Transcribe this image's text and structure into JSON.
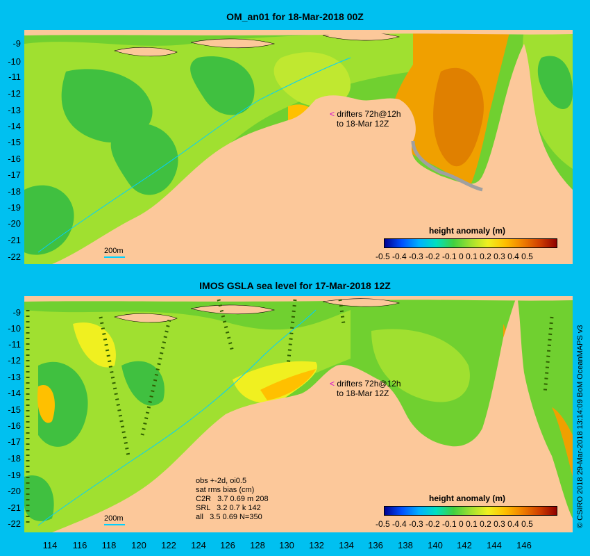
{
  "panel1": {
    "title": "OM_an01 for 18-Mar-2018 00Z",
    "y_labels": [
      "-9",
      "-10",
      "-11",
      "-12",
      "-13",
      "-14",
      "-15",
      "-16",
      "-17",
      "-18",
      "-19",
      "-20",
      "-21",
      "-22"
    ],
    "colorbar_title": "height anomaly (m)",
    "colorbar_ticks": "-0.5 -0.4 -0.3 -0.2 -0.1   0   0.1  0.2  0.3  0.4  0.5",
    "drifter_line1": "drifters 72h@12h",
    "drifter_line2": "to 18-Mar 12Z",
    "scale_label": "200m"
  },
  "panel2": {
    "title": "IMOS GSLA sea level  for 17-Mar-2018 12Z",
    "y_labels": [
      "-9",
      "-10",
      "-11",
      "-12",
      "-13",
      "-14",
      "-15",
      "-16",
      "-17",
      "-18",
      "-19",
      "-20",
      "-21",
      "-22"
    ],
    "colorbar_title": "height anomaly (m)",
    "colorbar_ticks": "-0.5 -0.4 -0.3 -0.2 -0.1   0   0.1  0.2  0.3  0.4  0.5",
    "drifter_line1": "drifters 72h@12h",
    "drifter_line2": "to 18-Mar 12Z",
    "scale_label": "200m",
    "stats": {
      "line1": "obs +-2d, oi0.5",
      "line2": "sat rms bias (cm)",
      "line3": "C2R   3.7 0.69 m 208",
      "line4": "SRL   3.2 0.7 k 142",
      "line5": "all   3.5 0.69 N=350"
    }
  },
  "x_labels": [
    "114",
    "116",
    "118",
    "120",
    "122",
    "124",
    "126",
    "128",
    "130",
    "132",
    "134",
    "136",
    "138",
    "140",
    "142",
    "144",
    "146"
  ],
  "credit": "© CSIRO 2018  29-Mar-2018 13:14:09 BoM OceanMAPS v3",
  "colors": {
    "background": "#00c0f0",
    "land": "#fcc89a",
    "colormap": [
      "#000090",
      "#0050ff",
      "#00b0ff",
      "#00e0c0",
      "#40d040",
      "#a0e030",
      "#f0f020",
      "#ffc000",
      "#f08000",
      "#d04000",
      "#900000"
    ]
  }
}
